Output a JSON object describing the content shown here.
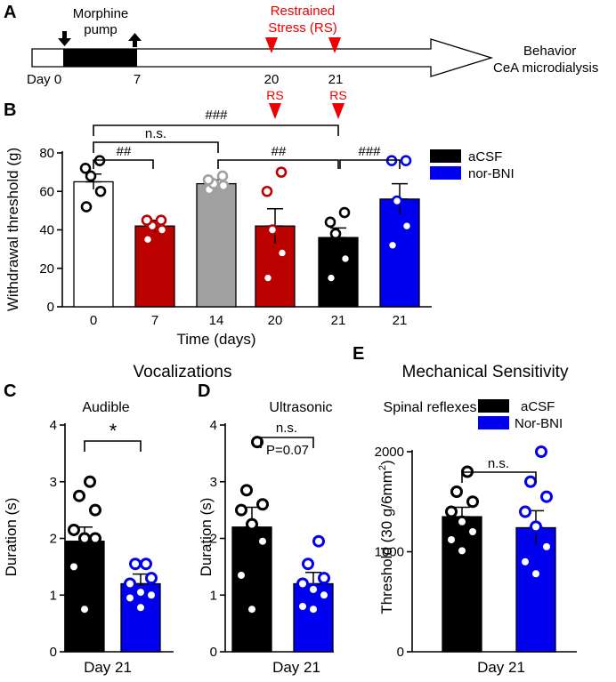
{
  "colors": {
    "acsf": "#000000",
    "norbni": "#0000ee",
    "red": "#bb0000",
    "gray": "#a0a0a0",
    "white": "#ffffff",
    "rs": "#ee0000"
  },
  "panel_a": {
    "letter": "A",
    "pump_label_1": "Morphine",
    "pump_label_2": "pump",
    "rs_label_1": "Restrained",
    "rs_label_2": "Stress (RS)",
    "day_label": "Day 0",
    "day_7": "7",
    "day_20": "20",
    "day_21": "21",
    "outcome_1": "Behavior",
    "outcome_2": "CeA microdialysis"
  },
  "chart_data": [
    {
      "id": "B",
      "letter": "B",
      "type": "bar",
      "categories": [
        "0",
        "7",
        "14",
        "20",
        "21",
        "21"
      ],
      "values": [
        65,
        42,
        64,
        42,
        36,
        56
      ],
      "sem": [
        4,
        3,
        2,
        9,
        5,
        8
      ],
      "bar_colors": [
        "#ffffff",
        "#bb0000",
        "#a0a0a0",
        "#bb0000",
        "#000000",
        "#0000ee"
      ],
      "points": [
        [
          52,
          60,
          68,
          72,
          76
        ],
        [
          35,
          40,
          42,
          45,
          45
        ],
        [
          61,
          63,
          64,
          66,
          68
        ],
        [
          15,
          28,
          40,
          60,
          70
        ],
        [
          15,
          25,
          38,
          44,
          49
        ],
        [
          32,
          42,
          55,
          76,
          76
        ]
      ],
      "rs_marks": [
        "RS",
        "RS"
      ],
      "rs_on": [
        "20",
        "21"
      ],
      "xlabel": "Time (days)",
      "ylabel": "Withdrawal threshold (g)",
      "ylim": [
        0,
        80
      ],
      "yticks": [
        "0",
        "20",
        "40",
        "60",
        "80"
      ],
      "legend": [
        {
          "label": "aCSF",
          "color": "#000000"
        },
        {
          "label": "nor-BNI",
          "color": "#0000ee"
        }
      ],
      "legend_position": "top-right",
      "significance": [
        {
          "from": "0",
          "to": "21 (aCSF)",
          "label": "###"
        },
        {
          "from": "0",
          "to": "14",
          "label": "n.s."
        },
        {
          "from": "0",
          "to": "7",
          "label": "##"
        },
        {
          "from": "14",
          "to": "21 (aCSF)",
          "label": "##"
        },
        {
          "from": "21 (aCSF)",
          "to": "21 (nor-BNI)",
          "label": "###"
        }
      ]
    },
    {
      "id": "C",
      "letter": "C",
      "type": "bar",
      "group_title": "Vocalizations",
      "subtitle": "Audible",
      "categories": [
        "aCSF",
        "nor-BNI"
      ],
      "values": [
        1.95,
        1.2
      ],
      "sem": [
        0.25,
        0.17
      ],
      "points": [
        [
          0.75,
          1.5,
          2.0,
          2.0,
          2.15,
          2.5,
          2.75,
          3.0
        ],
        [
          0.78,
          0.95,
          1.0,
          1.05,
          1.2,
          1.3,
          1.55,
          1.55
        ]
      ],
      "xlabel": "Day 21",
      "ylabel": "Duration (s)",
      "ylim": [
        0,
        4
      ],
      "yticks": [
        "0",
        "1",
        "2",
        "3",
        "4"
      ],
      "significance": [
        {
          "label": "*"
        }
      ]
    },
    {
      "id": "D",
      "letter": "D",
      "type": "bar",
      "subtitle": "Ultrasonic",
      "categories": [
        "aCSF",
        "nor-BNI"
      ],
      "values": [
        2.2,
        1.2
      ],
      "sem": [
        0.35,
        0.2
      ],
      "points": [
        [
          0.75,
          1.35,
          1.95,
          2.25,
          2.5,
          2.6,
          2.85,
          3.7
        ],
        [
          0.75,
          0.8,
          1.0,
          1.1,
          1.2,
          1.3,
          1.55,
          1.95
        ]
      ],
      "xlabel": "Day 21",
      "ylabel": "Duration (s)",
      "ylim": [
        0,
        4
      ],
      "yticks": [
        "0",
        "1",
        "2",
        "3",
        "4"
      ],
      "significance": [
        {
          "label": "n.s."
        },
        {
          "label": "P=0.07"
        }
      ]
    },
    {
      "id": "E",
      "letter": "E",
      "type": "bar",
      "group_title": "Mechanical Sensitivity",
      "subtitle": "Spinal reflexes",
      "categories": [
        "aCSF",
        "Nor-BNI"
      ],
      "values": [
        1350,
        1240
      ],
      "sem": [
        95,
        170
      ],
      "points": [
        [
          1010,
          1120,
          1200,
          1300,
          1400,
          1500,
          1600,
          1800
        ],
        [
          780,
          900,
          1050,
          1250,
          1400,
          1550,
          1700,
          2000
        ]
      ],
      "xlabel": "Day 21",
      "ylabel": "Threshold (30 g/6mm",
      "ylabel_sup": "2",
      "ylabel_end": ")",
      "ylim": [
        0,
        2000
      ],
      "yticks": [
        "0",
        "1000",
        "2000"
      ],
      "legend": [
        {
          "label": "aCSF",
          "color": "#000000"
        },
        {
          "label": "Nor-BNI",
          "color": "#0000ee"
        }
      ],
      "legend_position": "top-right",
      "significance": [
        {
          "label": "n.s."
        }
      ]
    }
  ]
}
